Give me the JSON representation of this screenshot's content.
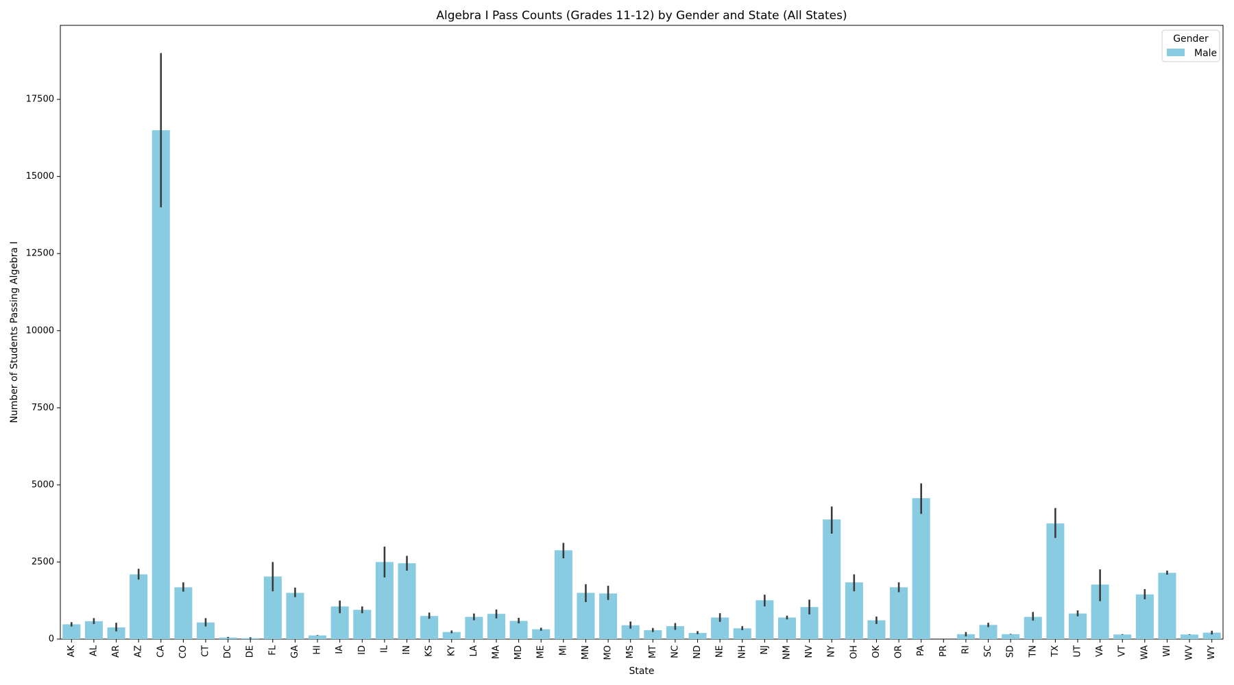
{
  "chart_data": {
    "type": "bar",
    "title": "Algebra I Pass Counts (Grades 11-12) by Gender and State (All States)",
    "xlabel": "State",
    "ylabel": "Number of Students Passing Algebra I",
    "ylim": [
      0,
      19900
    ],
    "yticks": [
      0,
      2500,
      5000,
      7500,
      10000,
      12500,
      15000,
      17500
    ],
    "grid": false,
    "legend": {
      "title": "Gender",
      "placement": "top-right"
    },
    "categories": [
      "AK",
      "AL",
      "AR",
      "AZ",
      "CA",
      "CO",
      "CT",
      "DC",
      "DE",
      "FL",
      "GA",
      "HI",
      "IA",
      "ID",
      "IL",
      "IN",
      "KS",
      "KY",
      "LA",
      "MA",
      "MD",
      "ME",
      "MI",
      "MN",
      "MO",
      "MS",
      "MT",
      "NC",
      "ND",
      "NE",
      "NH",
      "NJ",
      "NM",
      "NV",
      "NY",
      "OH",
      "OK",
      "OR",
      "PA",
      "PR",
      "RI",
      "SC",
      "SD",
      "TN",
      "TX",
      "UT",
      "VA",
      "VT",
      "WA",
      "WI",
      "WV",
      "WY"
    ],
    "series": [
      {
        "name": "Male",
        "color": "#89cce2",
        "values": [
          480,
          580,
          380,
          2100,
          16500,
          1680,
          540,
          50,
          30,
          2030,
          1500,
          120,
          1060,
          950,
          2500,
          2460,
          750,
          230,
          720,
          820,
          590,
          320,
          2880,
          1500,
          1480,
          450,
          290,
          420,
          200,
          700,
          350,
          1260,
          700,
          1040,
          3880,
          1840,
          610,
          1680,
          4570,
          0,
          160,
          460,
          160,
          720,
          3750,
          830,
          1770,
          150,
          1450,
          2150,
          150,
          210
        ],
        "error_low": [
          410,
          490,
          250,
          1930,
          14000,
          1540,
          410,
          30,
          10,
          1550,
          1360,
          110,
          840,
          840,
          2000,
          2220,
          660,
          190,
          610,
          670,
          510,
          270,
          2620,
          1200,
          1270,
          340,
          230,
          300,
          160,
          560,
          290,
          1060,
          640,
          800,
          3420,
          1550,
          490,
          1520,
          4060,
          0,
          90,
          390,
          150,
          600,
          3280,
          740,
          1230,
          140,
          1290,
          2090,
          140,
          150
        ],
        "error_high": [
          550,
          680,
          530,
          2280,
          19000,
          1840,
          680,
          70,
          60,
          2500,
          1670,
          130,
          1250,
          1060,
          3000,
          2700,
          860,
          280,
          830,
          960,
          690,
          370,
          3120,
          1780,
          1730,
          570,
          360,
          520,
          260,
          840,
          420,
          1440,
          760,
          1280,
          4300,
          2100,
          730,
          1840,
          5050,
          0,
          230,
          530,
          170,
          880,
          4250,
          930,
          2260,
          160,
          1620,
          2220,
          160,
          270
        ]
      }
    ]
  }
}
